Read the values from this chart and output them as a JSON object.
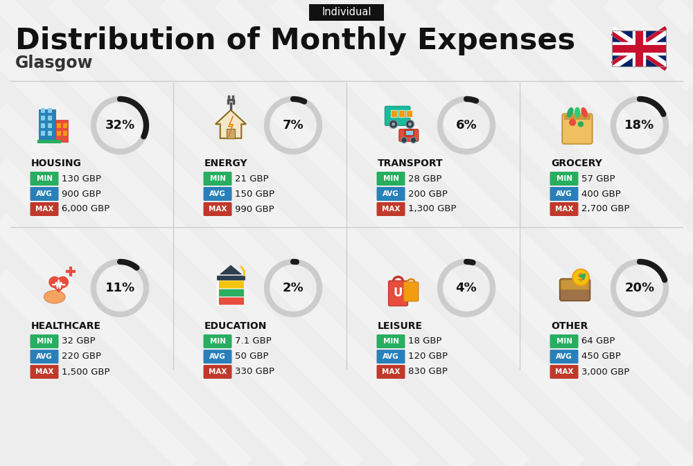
{
  "title": "Distribution of Monthly Expenses",
  "subtitle": "Glasgow",
  "badge": "Individual",
  "bg_color": "#ededee",
  "categories": [
    {
      "name": "HOUSING",
      "pct": 32,
      "min_val": "130 GBP",
      "avg_val": "900 GBP",
      "max_val": "6,000 GBP",
      "col": 0,
      "row": 0
    },
    {
      "name": "ENERGY",
      "pct": 7,
      "min_val": "21 GBP",
      "avg_val": "150 GBP",
      "max_val": "990 GBP",
      "col": 1,
      "row": 0
    },
    {
      "name": "TRANSPORT",
      "pct": 6,
      "min_val": "28 GBP",
      "avg_val": "200 GBP",
      "max_val": "1,300 GBP",
      "col": 2,
      "row": 0
    },
    {
      "name": "GROCERY",
      "pct": 18,
      "min_val": "57 GBP",
      "avg_val": "400 GBP",
      "max_val": "2,700 GBP",
      "col": 3,
      "row": 0
    },
    {
      "name": "HEALTHCARE",
      "pct": 11,
      "min_val": "32 GBP",
      "avg_val": "220 GBP",
      "max_val": "1,500 GBP",
      "col": 0,
      "row": 1
    },
    {
      "name": "EDUCATION",
      "pct": 2,
      "min_val": "7.1 GBP",
      "avg_val": "50 GBP",
      "max_val": "330 GBP",
      "col": 1,
      "row": 1
    },
    {
      "name": "LEISURE",
      "pct": 4,
      "min_val": "18 GBP",
      "avg_val": "120 GBP",
      "max_val": "830 GBP",
      "col": 2,
      "row": 1
    },
    {
      "name": "OTHER",
      "pct": 20,
      "min_val": "64 GBP",
      "avg_val": "450 GBP",
      "max_val": "3,000 GBP",
      "col": 3,
      "row": 1
    }
  ],
  "color_min": "#27ae60",
  "color_avg": "#2980b9",
  "color_max": "#c0392b",
  "arc_color": "#1a1a1a",
  "arc_bg_color": "#cccccc",
  "divider_color": "#cccccc",
  "text_dark": "#111111"
}
